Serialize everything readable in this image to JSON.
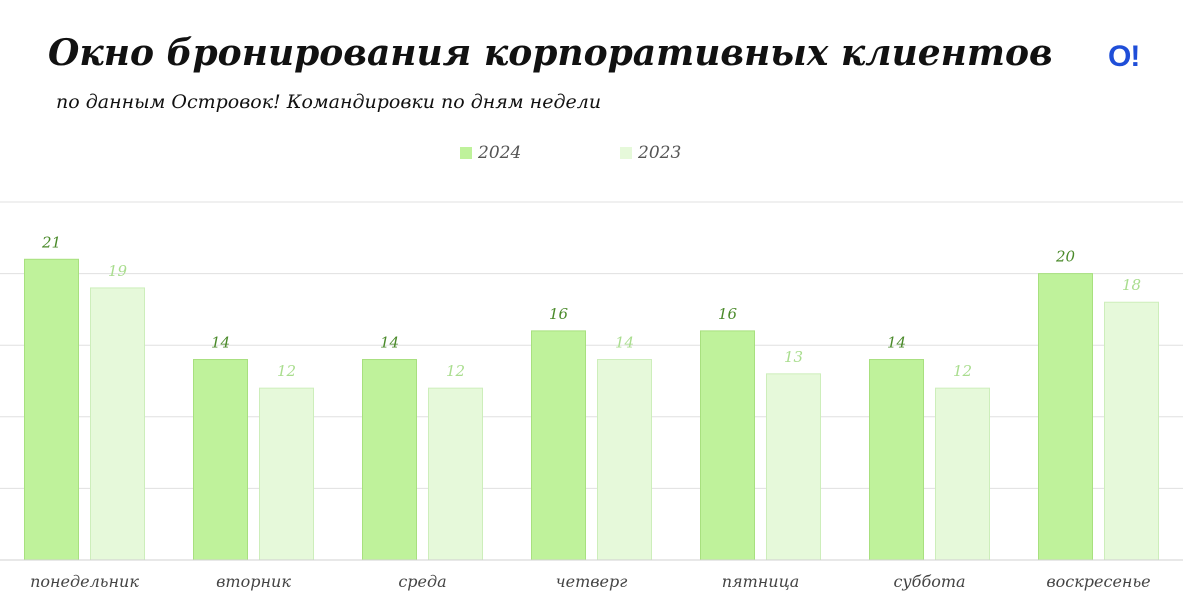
{
  "title": "Окно бронирования корпоративных клиентов",
  "subtitle": "по данным Островок! Командировки по дням недели",
  "logo": "O!",
  "colors": {
    "bar_2024": "#bff29b",
    "bar_2023": "#e6f9da",
    "label_2024": "#4a8a2a",
    "label_2023": "#a9dd8e",
    "grid": "#e0e0e0"
  },
  "chart_data": {
    "type": "bar",
    "title": "Окно бронирования корпоративных клиентов",
    "subtitle": "по данным Островок! Командировки по дням недели",
    "xlabel": "",
    "ylabel": "",
    "ylim": [
      0,
      25
    ],
    "grid": true,
    "legend_position": "top-center",
    "categories": [
      "понедельник",
      "вторник",
      "среда",
      "четверг",
      "пятница",
      "суббота",
      "воскресенье"
    ],
    "series": [
      {
        "name": "2024",
        "values": [
          21,
          14,
          14,
          16,
          16,
          14,
          20
        ],
        "labels": [
          "21",
          "14",
          "14",
          "16",
          "16",
          "14",
          "20"
        ]
      },
      {
        "name": "2023",
        "values": [
          19,
          12,
          12,
          14,
          13,
          12,
          18
        ],
        "labels": [
          "19",
          "12",
          "12",
          "14",
          "13",
          "12",
          "18"
        ]
      }
    ]
  }
}
